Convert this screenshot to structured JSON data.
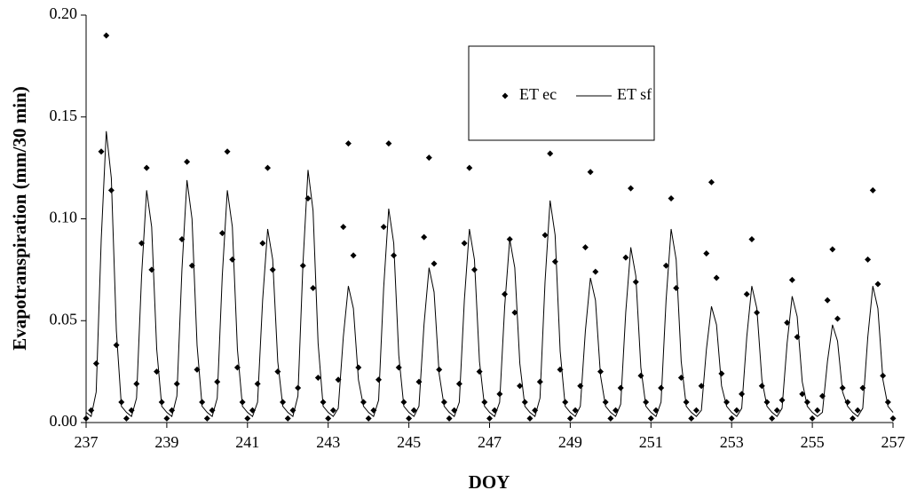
{
  "chart_data": {
    "type": "scatter-line",
    "xlabel": "DOY",
    "ylabel": "Evapotranspiration (mm/30 min)",
    "xlim": [
      237,
      257
    ],
    "xticks": [
      237,
      239,
      241,
      243,
      245,
      247,
      249,
      251,
      253,
      255,
      257
    ],
    "ylim": [
      0,
      0.2
    ],
    "yticks": [
      {
        "value": 0,
        "label": "0.00"
      },
      {
        "value": 0.05,
        "label": "0.05"
      },
      {
        "value": 0.1,
        "label": "0.10"
      },
      {
        "value": 0.15,
        "label": "0.15"
      },
      {
        "value": 0.2,
        "label": "0.20"
      }
    ],
    "legend": "upper right",
    "x": [
      237,
      237.125,
      237.25,
      237.375,
      237.5,
      237.625,
      237.75,
      237.875,
      238,
      238.125,
      238.25,
      238.375,
      238.5,
      238.625,
      238.75,
      238.875,
      239,
      239.125,
      239.25,
      239.375,
      239.5,
      239.625,
      239.75,
      239.875,
      240,
      240.125,
      240.25,
      240.375,
      240.5,
      240.625,
      240.75,
      240.875,
      241,
      241.125,
      241.25,
      241.375,
      241.5,
      241.625,
      241.75,
      241.875,
      242,
      242.125,
      242.25,
      242.375,
      242.5,
      242.625,
      242.75,
      242.875,
      243,
      243.125,
      243.25,
      243.375,
      243.5,
      243.625,
      243.75,
      243.875,
      244,
      244.125,
      244.25,
      244.375,
      244.5,
      244.625,
      244.75,
      244.875,
      245,
      245.125,
      245.25,
      245.375,
      245.5,
      245.625,
      245.75,
      245.875,
      246,
      246.125,
      246.25,
      246.375,
      246.5,
      246.625,
      246.75,
      246.875,
      247,
      247.125,
      247.25,
      247.375,
      247.5,
      247.625,
      247.75,
      247.875,
      248,
      248.125,
      248.25,
      248.375,
      248.5,
      248.625,
      248.75,
      248.875,
      249,
      249.125,
      249.25,
      249.375,
      249.5,
      249.625,
      249.75,
      249.875,
      250,
      250.125,
      250.25,
      250.375,
      250.5,
      250.625,
      250.75,
      250.875,
      251,
      251.125,
      251.25,
      251.375,
      251.5,
      251.625,
      251.75,
      251.875,
      252,
      252.125,
      252.25,
      252.375,
      252.5,
      252.625,
      252.75,
      252.875,
      253,
      253.125,
      253.25,
      253.375,
      253.5,
      253.625,
      253.75,
      253.875,
      254,
      254.125,
      254.25,
      254.375,
      254.5,
      254.625,
      254.75,
      254.875,
      255,
      255.125,
      255.25,
      255.375,
      255.5,
      255.625,
      255.75,
      255.875,
      256,
      256.125,
      256.25,
      256.375,
      256.5,
      256.625,
      256.75,
      256.875,
      257
    ],
    "series": [
      {
        "name": "ET ec",
        "kind": "marker",
        "color": "#000000",
        "values": [
          0.002,
          0.006,
          0.029,
          0.133,
          0.19,
          0.114,
          0.038,
          0.01,
          0.002,
          0.006,
          0.019,
          0.088,
          0.125,
          0.075,
          0.025,
          0.01,
          0.002,
          0.006,
          0.019,
          0.09,
          0.128,
          0.077,
          0.026,
          0.01,
          0.002,
          0.006,
          0.02,
          0.093,
          0.133,
          0.08,
          0.027,
          0.01,
          0.002,
          0.006,
          0.019,
          0.088,
          0.125,
          0.075,
          0.025,
          0.01,
          0.002,
          0.006,
          0.017,
          0.077,
          0.11,
          0.066,
          0.022,
          0.01,
          0.002,
          0.006,
          0.021,
          0.096,
          0.137,
          0.082,
          0.027,
          0.01,
          0.002,
          0.006,
          0.021,
          0.096,
          0.137,
          0.082,
          0.027,
          0.01,
          0.002,
          0.006,
          0.02,
          0.091,
          0.13,
          0.078,
          0.026,
          0.01,
          0.002,
          0.006,
          0.019,
          0.088,
          0.125,
          0.075,
          0.025,
          0.01,
          0.002,
          0.006,
          0.014,
          0.063,
          0.09,
          0.054,
          0.018,
          0.01,
          0.002,
          0.006,
          0.02,
          0.092,
          0.132,
          0.079,
          0.026,
          0.01,
          0.002,
          0.006,
          0.018,
          0.086,
          0.123,
          0.074,
          0.025,
          0.01,
          0.002,
          0.006,
          0.017,
          0.081,
          0.115,
          0.069,
          0.023,
          0.01,
          0.002,
          0.006,
          0.017,
          0.077,
          0.11,
          0.066,
          0.022,
          0.01,
          0.002,
          0.006,
          0.018,
          0.083,
          0.118,
          0.071,
          0.024,
          0.01,
          0.002,
          0.006,
          0.014,
          0.063,
          0.09,
          0.054,
          0.018,
          0.01,
          0.002,
          0.006,
          0.011,
          0.049,
          0.07,
          0.042,
          0.014,
          0.01,
          0.002,
          0.006,
          0.013,
          0.06,
          0.085,
          0.051,
          0.017,
          0.01,
          0.002,
          0.006,
          0.017,
          0.08,
          0.114,
          0.068,
          0.023,
          0.01,
          0.002
        ]
      },
      {
        "name": "ET sf",
        "kind": "line",
        "color": "#000000",
        "values": [
          0.005,
          0.003,
          0.015,
          0.09,
          0.143,
          0.12,
          0.045,
          0.008,
          0.005,
          0.003,
          0.012,
          0.072,
          0.114,
          0.096,
          0.036,
          0.008,
          0.005,
          0.003,
          0.013,
          0.075,
          0.119,
          0.1,
          0.038,
          0.008,
          0.005,
          0.003,
          0.012,
          0.072,
          0.114,
          0.096,
          0.036,
          0.008,
          0.005,
          0.003,
          0.01,
          0.06,
          0.095,
          0.08,
          0.03,
          0.008,
          0.005,
          0.003,
          0.013,
          0.078,
          0.124,
          0.104,
          0.039,
          0.008,
          0.005,
          0.003,
          0.007,
          0.042,
          0.067,
          0.056,
          0.021,
          0.008,
          0.005,
          0.003,
          0.011,
          0.066,
          0.105,
          0.088,
          0.033,
          0.008,
          0.005,
          0.003,
          0.008,
          0.048,
          0.076,
          0.064,
          0.024,
          0.008,
          0.005,
          0.003,
          0.01,
          0.06,
          0.095,
          0.08,
          0.03,
          0.008,
          0.005,
          0.003,
          0.01,
          0.057,
          0.09,
          0.076,
          0.029,
          0.008,
          0.005,
          0.003,
          0.012,
          0.069,
          0.109,
          0.092,
          0.035,
          0.008,
          0.005,
          0.003,
          0.008,
          0.045,
          0.071,
          0.06,
          0.023,
          0.008,
          0.005,
          0.003,
          0.009,
          0.054,
          0.086,
          0.072,
          0.027,
          0.008,
          0.005,
          0.003,
          0.01,
          0.06,
          0.095,
          0.08,
          0.03,
          0.008,
          0.005,
          0.003,
          0.006,
          0.036,
          0.057,
          0.048,
          0.018,
          0.008,
          0.005,
          0.003,
          0.007,
          0.042,
          0.067,
          0.056,
          0.021,
          0.008,
          0.005,
          0.003,
          0.007,
          0.039,
          0.062,
          0.052,
          0.02,
          0.008,
          0.005,
          0.003,
          0.005,
          0.03,
          0.048,
          0.04,
          0.015,
          0.008,
          0.005,
          0.003,
          0.007,
          0.042,
          0.067,
          0.056,
          0.021,
          0.008,
          0.005
        ]
      }
    ]
  }
}
